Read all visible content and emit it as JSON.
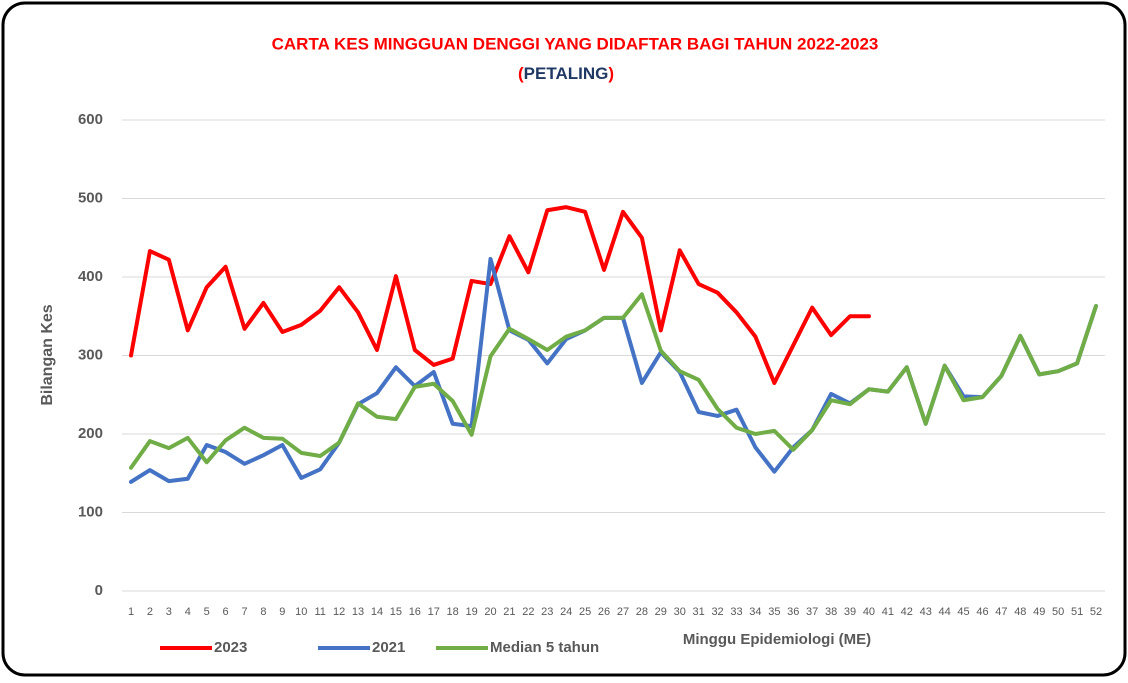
{
  "chart_data": {
    "type": "line",
    "title": "CARTA KES MINGGUAN DENGGI YANG DIDAFTAR BAGI TAHUN 2022-2023",
    "subtitle": [
      "(",
      "PETALING",
      ")"
    ],
    "xlabel": "Minggu Epidemiologi (ME)",
    "ylabel": "Bilangan Kes",
    "categories": [
      "1",
      "2",
      "3",
      "4",
      "5",
      "6",
      "7",
      "8",
      "9",
      "10",
      "11",
      "12",
      "13",
      "14",
      "15",
      "16",
      "17",
      "18",
      "19",
      "20",
      "21",
      "22",
      "23",
      "24",
      "25",
      "26",
      "27",
      "28",
      "29",
      "30",
      "31",
      "32",
      "33",
      "34",
      "35",
      "36",
      "37",
      "38",
      "39",
      "40",
      "41",
      "42",
      "43",
      "44",
      "45",
      "46",
      "47",
      "48",
      "49",
      "50",
      "51",
      "52"
    ],
    "series": [
      {
        "name": "2023",
        "color": "#ff0000",
        "values": [
          300,
          433,
          422,
          332,
          387,
          413,
          334,
          367,
          330,
          339,
          357,
          387,
          355,
          307,
          401,
          307,
          288,
          296,
          395,
          391,
          452,
          406,
          485,
          489,
          483,
          409,
          483,
          450,
          332,
          434,
          391,
          380,
          355,
          324,
          265,
          313,
          361,
          326,
          350,
          350,
          null,
          null,
          null,
          null,
          null,
          null,
          null,
          null,
          null,
          null,
          null,
          null
        ]
      },
      {
        "name": "2021",
        "color": "#4472c4",
        "values": [
          139,
          154,
          140,
          143,
          186,
          177,
          162,
          173,
          186,
          144,
          155,
          189,
          238,
          252,
          285,
          261,
          279,
          213,
          210,
          423,
          332,
          320,
          290,
          321,
          332,
          348,
          348,
          265,
          304,
          279,
          228,
          223,
          231,
          183,
          152,
          183,
          205,
          251,
          239,
          257,
          254,
          285,
          213,
          287,
          248,
          247,
          274,
          325,
          276,
          280,
          290,
          363
        ]
      },
      {
        "name": "Median 5 tahun",
        "color": "#70ad47",
        "values": [
          157,
          191,
          182,
          195,
          164,
          192,
          208,
          195,
          194,
          176,
          172,
          189,
          239,
          222,
          219,
          260,
          264,
          242,
          199,
          299,
          334,
          321,
          307,
          324,
          332,
          348,
          348,
          378,
          306,
          280,
          269,
          232,
          208,
          200,
          204,
          180,
          205,
          243,
          238,
          257,
          254,
          285,
          213,
          287,
          243,
          247,
          274,
          325,
          276,
          280,
          290,
          363
        ]
      }
    ],
    "ylim": [
      0,
      600
    ],
    "yticks": [
      0,
      100,
      200,
      300,
      400,
      500,
      600
    ],
    "grid": true,
    "legend": "bottom-left"
  }
}
